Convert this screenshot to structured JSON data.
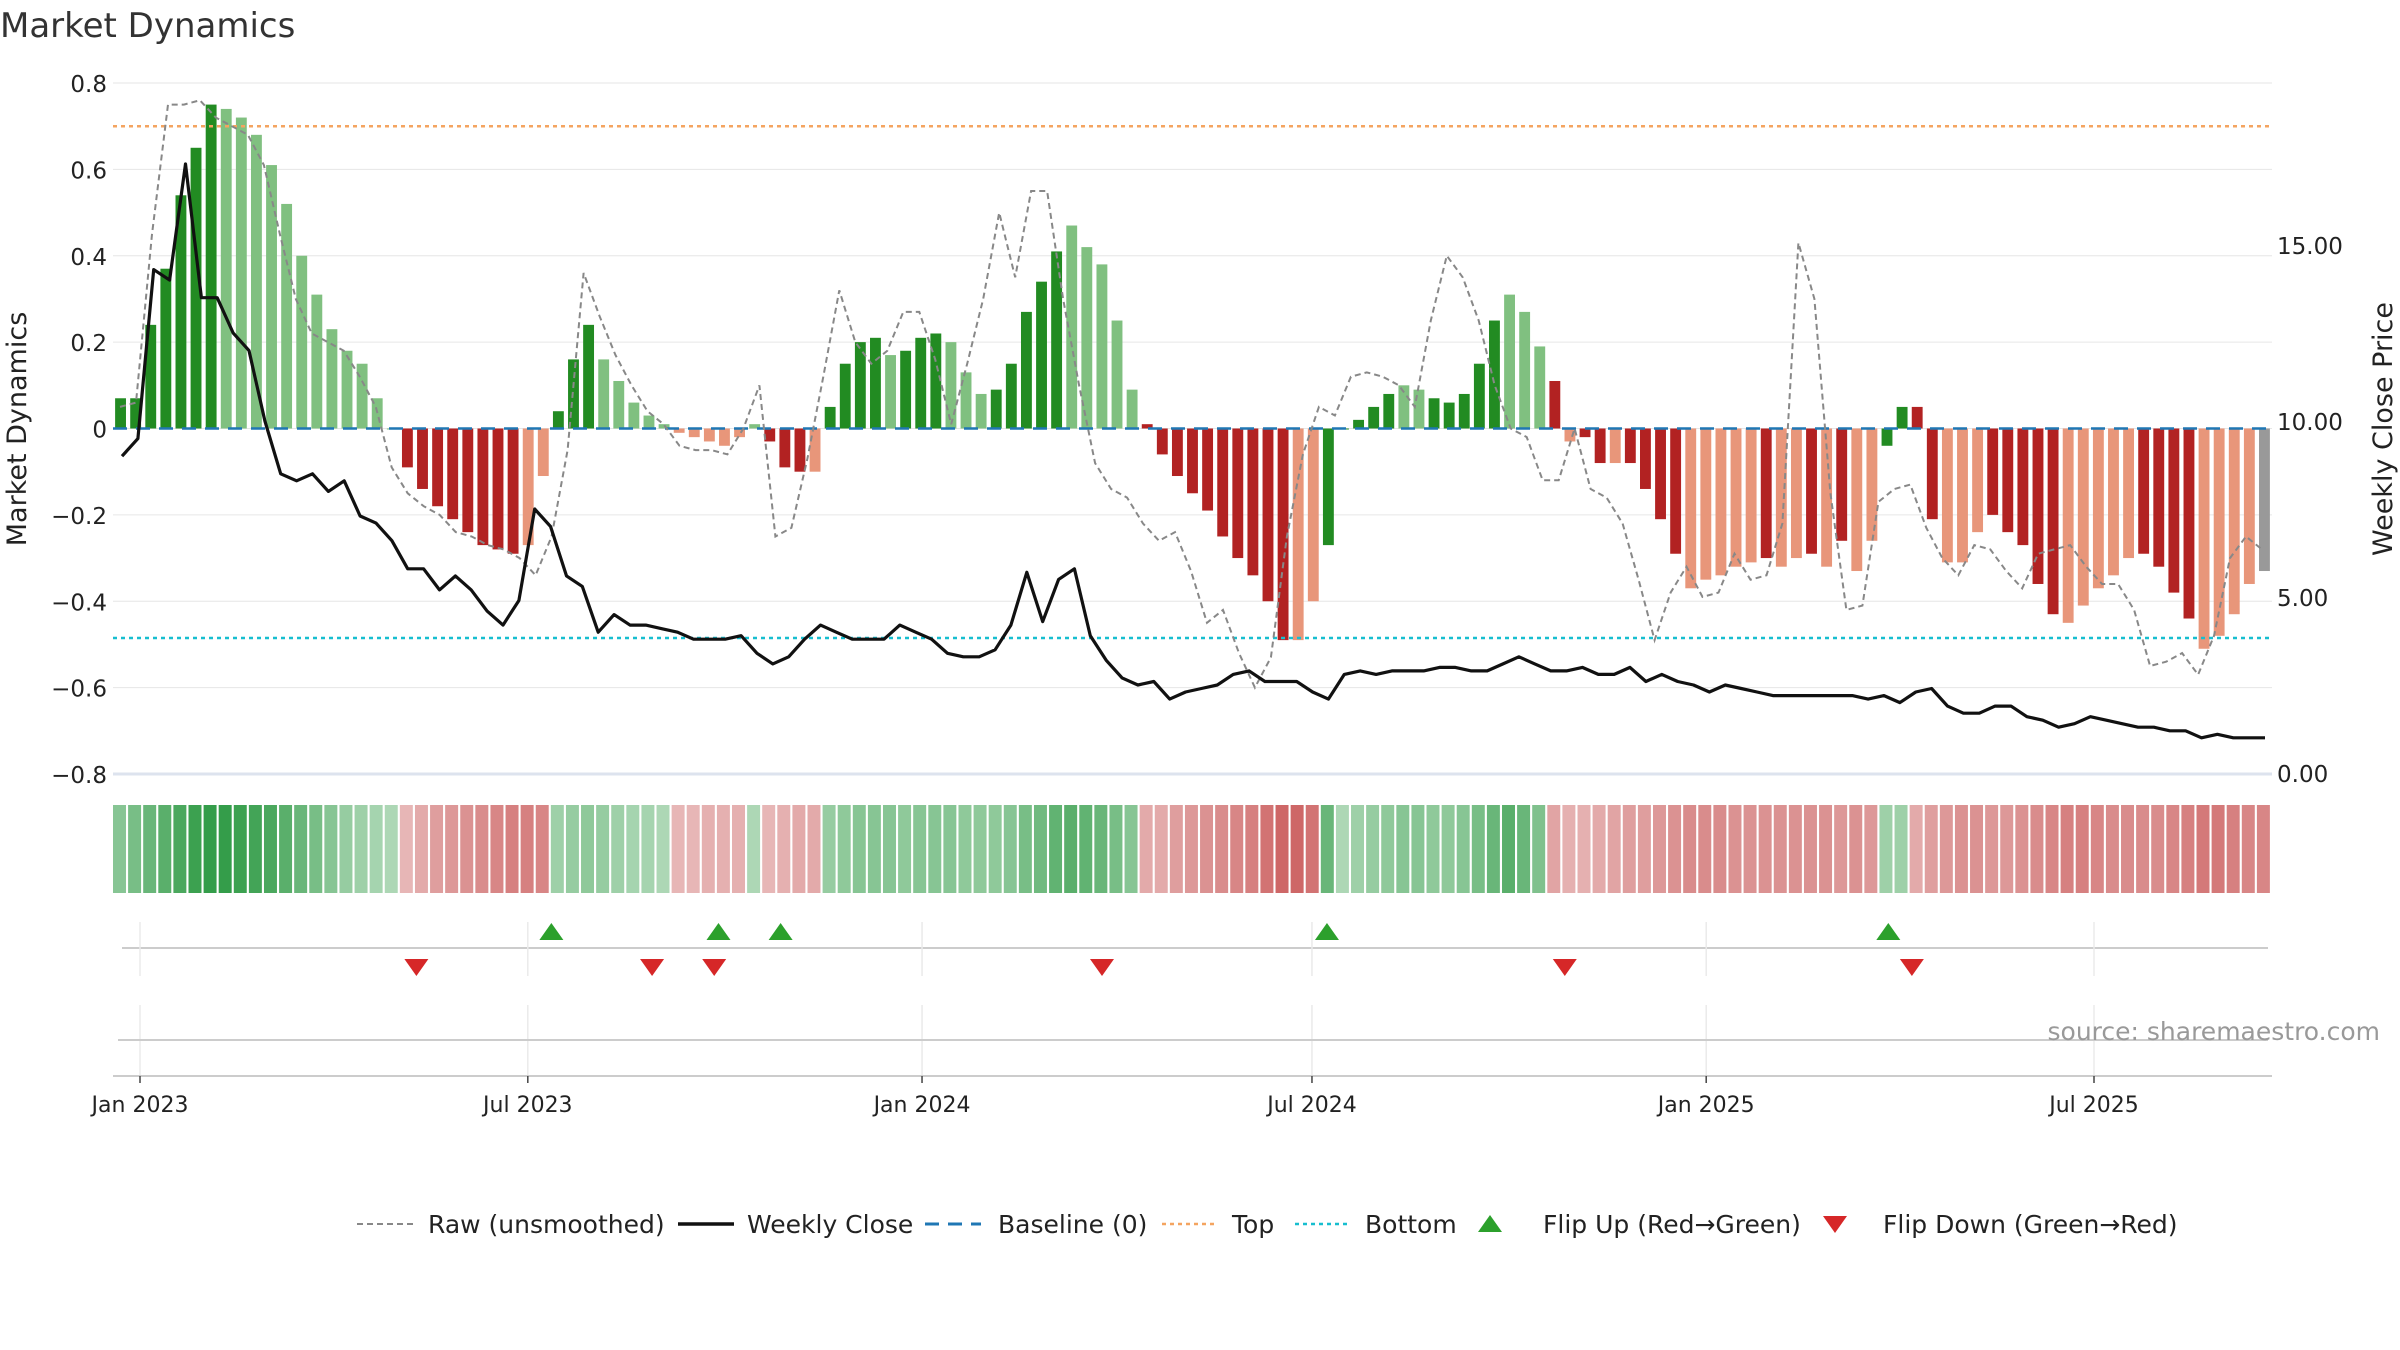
{
  "chart_data": {
    "type": "bar",
    "title": "Market Dynamics",
    "ylabel_left": "Market Dynamics",
    "ylabel_right": "Weekly Close Price",
    "source": "source: sharemaestro.com",
    "ylim_left": [
      -0.8,
      0.8
    ],
    "ylim_right": [
      0,
      19.6
    ],
    "y_ticks_left": [
      "0.8",
      "0.6",
      "0.4",
      "0.2",
      "0",
      "−0.2",
      "−0.4",
      "−0.6",
      "−0.8"
    ],
    "y_ticks_right": [
      "15.00",
      "10.00",
      "5.00",
      "0.00"
    ],
    "x_ticks": [
      "Jan 2023",
      "Jul 2023",
      "Jan 2024",
      "Jul 2024",
      "Jan 2025",
      "Jul 2025"
    ],
    "top_level": 0.7,
    "bottom_level": -0.485,
    "baseline": 0,
    "colors": {
      "green_strong": "#228b22",
      "green_weak": "#80c080",
      "red_strong": "#b22222",
      "red_weak": "#e8967a",
      "raw": "#888888",
      "close": "#111111",
      "baseline": "#1f77b4",
      "top": "#f4a460",
      "bottom": "#17becf",
      "flip_up": "#2ca02c",
      "flip_down": "#d62728"
    },
    "series": [
      {
        "name": "Market Dynamics",
        "values": [
          0.07,
          0.07,
          0.24,
          0.37,
          0.54,
          0.65,
          0.75,
          0.74,
          0.72,
          0.68,
          0.61,
          0.52,
          0.4,
          0.31,
          0.23,
          0.18,
          0.15,
          0.07,
          0.0,
          -0.09,
          -0.14,
          -0.18,
          -0.21,
          -0.24,
          -0.27,
          -0.28,
          -0.29,
          -0.27,
          -0.11,
          0.04,
          0.16,
          0.24,
          0.16,
          0.11,
          0.06,
          0.03,
          0.01,
          -0.01,
          -0.02,
          -0.03,
          -0.04,
          -0.02,
          0.01,
          -0.03,
          -0.09,
          -0.1,
          -0.1,
          0.05,
          0.15,
          0.2,
          0.21,
          0.17,
          0.18,
          0.21,
          0.22,
          0.2,
          0.13,
          0.08,
          0.09,
          0.15,
          0.27,
          0.34,
          0.41,
          0.47,
          0.42,
          0.38,
          0.25,
          0.09,
          0.01,
          -0.06,
          -0.11,
          -0.15,
          -0.19,
          -0.25,
          -0.3,
          -0.34,
          -0.4,
          -0.49,
          -0.49,
          -0.4,
          -0.27,
          0.0,
          0.02,
          0.05,
          0.08,
          0.1,
          0.09,
          0.07,
          0.06,
          0.08,
          0.15,
          0.25,
          0.31,
          0.27,
          0.19,
          0.11,
          -0.03,
          -0.02,
          -0.08,
          -0.08,
          -0.08,
          -0.14,
          -0.21,
          -0.29,
          -0.37,
          -0.35,
          -0.34,
          -0.32,
          -0.31,
          -0.3,
          -0.32,
          -0.3,
          -0.29,
          -0.32,
          -0.26,
          -0.33,
          -0.26,
          -0.04,
          0.05,
          0.05,
          -0.21,
          -0.31,
          -0.31,
          -0.24,
          -0.2,
          -0.24,
          -0.27,
          -0.36,
          -0.43,
          -0.45,
          -0.41,
          -0.37,
          -0.34,
          -0.3,
          -0.29,
          -0.32,
          -0.38,
          -0.44,
          -0.51,
          -0.48,
          -0.43,
          -0.36,
          -0.33
        ],
        "colors": [
          "g",
          "g",
          "g",
          "g",
          "g",
          "g",
          "g",
          "G",
          "G",
          "G",
          "G",
          "G",
          "G",
          "G",
          "G",
          "G",
          "G",
          "G",
          "G",
          "r",
          "r",
          "r",
          "r",
          "r",
          "r",
          "r",
          "r",
          "R",
          "R",
          "g",
          "g",
          "g",
          "G",
          "G",
          "G",
          "G",
          "G",
          "R",
          "R",
          "R",
          "R",
          "R",
          "G",
          "r",
          "r",
          "r",
          "R",
          "g",
          "g",
          "g",
          "g",
          "G",
          "g",
          "g",
          "g",
          "G",
          "G",
          "G",
          "g",
          "g",
          "g",
          "g",
          "g",
          "G",
          "G",
          "G",
          "G",
          "G",
          "r",
          "r",
          "r",
          "r",
          "r",
          "r",
          "r",
          "r",
          "r",
          "r",
          "R",
          "R",
          "g",
          "g",
          "g",
          "g",
          "g",
          "G",
          "G",
          "g",
          "g",
          "g",
          "g",
          "g",
          "G",
          "G",
          "G",
          "r",
          "R",
          "r",
          "r",
          "R",
          "r",
          "r",
          "r",
          "r",
          "R",
          "R",
          "R",
          "R",
          "R",
          "r",
          "R",
          "R",
          "r",
          "R",
          "r",
          "R",
          "R",
          "g",
          "g",
          "r",
          "r",
          "R",
          "R",
          "R",
          "r",
          "r",
          "r",
          "r",
          "r",
          "R",
          "R",
          "R",
          "R",
          "R",
          "r",
          "r",
          "r",
          "r",
          "R",
          "R",
          "R",
          "R"
        ]
      },
      {
        "name": "Raw (unsmoothed)",
        "values": [
          0.05,
          0.06,
          0.45,
          0.75,
          0.75,
          0.76,
          0.72,
          0.7,
          0.68,
          0.61,
          0.45,
          0.3,
          0.22,
          0.2,
          0.18,
          0.12,
          0.05,
          -0.09,
          -0.15,
          -0.18,
          -0.2,
          -0.24,
          -0.25,
          -0.27,
          -0.28,
          -0.3,
          -0.34,
          -0.25,
          -0.05,
          0.36,
          0.26,
          0.17,
          0.1,
          0.04,
          0.01,
          -0.04,
          -0.05,
          -0.05,
          -0.06,
          0.0,
          0.1,
          -0.25,
          -0.23,
          -0.07,
          0.12,
          0.32,
          0.2,
          0.15,
          0.18,
          0.27,
          0.27,
          0.16,
          0.01,
          0.15,
          0.3,
          0.5,
          0.35,
          0.55,
          0.55,
          0.3,
          0.1,
          -0.08,
          -0.14,
          -0.16,
          -0.22,
          -0.26,
          -0.24,
          -0.33,
          -0.45,
          -0.42,
          -0.52,
          -0.6,
          -0.53,
          -0.25,
          -0.06,
          0.05,
          0.03,
          0.12,
          0.13,
          0.12,
          0.1,
          0.05,
          0.25,
          0.4,
          0.35,
          0.25,
          0.1,
          0.0,
          -0.02,
          -0.12,
          -0.12,
          0.0,
          -0.14,
          -0.16,
          -0.22,
          -0.35,
          -0.49,
          -0.38,
          -0.32,
          -0.39,
          -0.38,
          -0.29,
          -0.35,
          -0.34,
          -0.22,
          0.43,
          0.3,
          -0.15,
          -0.42,
          -0.41,
          -0.17,
          -0.14,
          -0.13,
          -0.23,
          -0.3,
          -0.34,
          -0.27,
          -0.28,
          -0.33,
          -0.37,
          -0.29,
          -0.28,
          -0.27,
          -0.32,
          -0.36,
          -0.36,
          -0.42,
          -0.55,
          -0.54,
          -0.52,
          -0.57,
          -0.48,
          -0.3,
          -0.25,
          -0.28
        ]
      },
      {
        "name": "Weekly Close",
        "values": [
          9.0,
          9.5,
          14.3,
          14.0,
          17.3,
          13.5,
          13.5,
          12.5,
          12.0,
          10.0,
          8.5,
          8.3,
          8.5,
          8.0,
          8.3,
          7.3,
          7.1,
          6.6,
          5.8,
          5.8,
          5.2,
          5.6,
          5.2,
          4.6,
          4.2,
          4.9,
          7.5,
          7.0,
          5.6,
          5.3,
          4.0,
          4.5,
          4.2,
          4.2,
          4.1,
          4.0,
          3.8,
          3.8,
          3.8,
          3.9,
          3.4,
          3.1,
          3.3,
          3.8,
          4.2,
          4.0,
          3.8,
          3.8,
          3.8,
          4.2,
          4.0,
          3.8,
          3.4,
          3.3,
          3.3,
          3.5,
          4.2,
          5.7,
          4.3,
          5.5,
          5.8,
          3.9,
          3.2,
          2.7,
          2.5,
          2.6,
          2.1,
          2.3,
          2.4,
          2.5,
          2.8,
          2.9,
          2.6,
          2.6,
          2.6,
          2.3,
          2.1,
          2.8,
          2.9,
          2.8,
          2.9,
          2.9,
          2.9,
          3.0,
          3.0,
          2.9,
          2.9,
          3.1,
          3.3,
          3.1,
          2.9,
          2.9,
          3.0,
          2.8,
          2.8,
          3.0,
          2.6,
          2.8,
          2.6,
          2.5,
          2.3,
          2.5,
          2.4,
          2.3,
          2.2,
          2.2,
          2.2,
          2.2,
          2.2,
          2.2,
          2.1,
          2.2,
          2.0,
          2.3,
          2.4,
          1.9,
          1.7,
          1.7,
          1.9,
          1.9,
          1.6,
          1.5,
          1.3,
          1.4,
          1.6,
          1.5,
          1.4,
          1.3,
          1.3,
          1.2,
          1.2,
          1.0,
          1.1,
          1.0,
          1.0,
          1.0
        ]
      }
    ],
    "strip_intensity": [
      0.45,
      0.55,
      0.65,
      0.75,
      0.85,
      0.95,
      1.0,
      1.0,
      0.95,
      0.9,
      0.85,
      0.75,
      0.65,
      0.55,
      0.45,
      0.35,
      0.3,
      0.25,
      0.2,
      0.25,
      0.35,
      0.45,
      0.5,
      0.55,
      0.6,
      0.65,
      0.7,
      0.7,
      0.65,
      0.3,
      0.35,
      0.4,
      0.35,
      0.3,
      0.25,
      0.25,
      0.2,
      0.25,
      0.25,
      0.3,
      0.3,
      0.3,
      0.2,
      0.25,
      0.3,
      0.35,
      0.35,
      0.35,
      0.4,
      0.45,
      0.45,
      0.45,
      0.4,
      0.45,
      0.45,
      0.45,
      0.4,
      0.4,
      0.4,
      0.45,
      0.55,
      0.6,
      0.7,
      0.75,
      0.7,
      0.65,
      0.55,
      0.45,
      0.35,
      0.35,
      0.45,
      0.5,
      0.55,
      0.6,
      0.65,
      0.7,
      0.8,
      0.9,
      0.9,
      0.8,
      0.65,
      0.2,
      0.3,
      0.35,
      0.4,
      0.45,
      0.45,
      0.4,
      0.4,
      0.45,
      0.55,
      0.65,
      0.75,
      0.65,
      0.5,
      0.4,
      0.3,
      0.3,
      0.35,
      0.4,
      0.45,
      0.45,
      0.5,
      0.55,
      0.6,
      0.6,
      0.6,
      0.55,
      0.55,
      0.55,
      0.55,
      0.55,
      0.55,
      0.55,
      0.5,
      0.55,
      0.5,
      0.3,
      0.3,
      0.35,
      0.45,
      0.5,
      0.55,
      0.55,
      0.5,
      0.5,
      0.55,
      0.6,
      0.65,
      0.7,
      0.7,
      0.65,
      0.6,
      0.6,
      0.6,
      0.6,
      0.65,
      0.7,
      0.75,
      0.75,
      0.7,
      0.65,
      0.65
    ],
    "flips_up": [
      "2023-07-12",
      "2023-09-28",
      "2023-10-27",
      "2024-07-08",
      "2025-03-27"
    ],
    "flips_down": [
      "2023-05-10",
      "2023-08-28",
      "2023-09-26",
      "2024-03-25",
      "2024-10-27",
      "2025-04-07"
    ],
    "legend": [
      {
        "label": "Raw (unsmoothed)",
        "kind": "dash-gray"
      },
      {
        "label": "Weekly Close",
        "kind": "solid-black"
      },
      {
        "label": "Baseline (0)",
        "kind": "dash-blue"
      },
      {
        "label": "Top",
        "kind": "dot-orange"
      },
      {
        "label": "Bottom",
        "kind": "dot-cyan"
      },
      {
        "label": "Flip Up (Red→Green)",
        "kind": "tri-up"
      },
      {
        "label": "Flip Down (Green→Red)",
        "kind": "tri-down"
      }
    ]
  }
}
